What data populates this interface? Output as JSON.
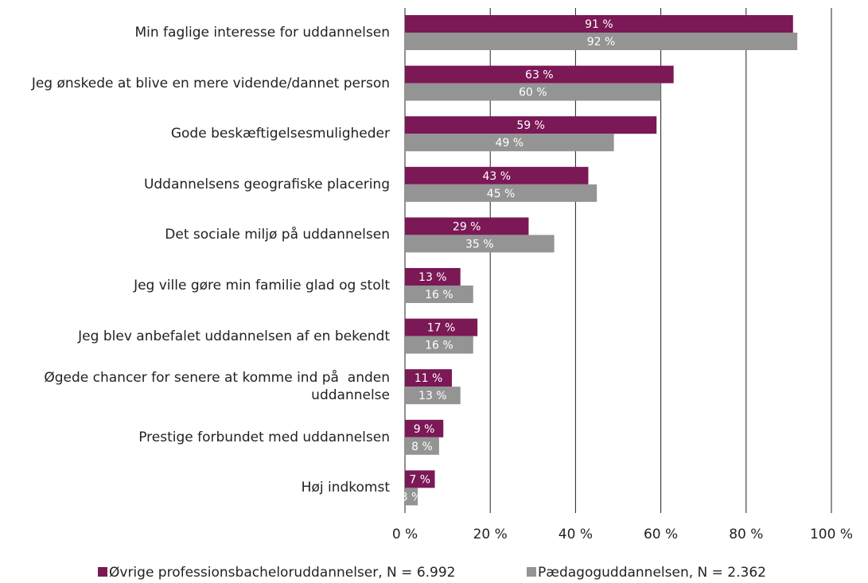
{
  "chart_data": {
    "type": "hbar",
    "categories": [
      "Min faglige interesse for uddannelsen",
      "Jeg ønskede at blive en mere vidende/dannet person",
      "Gode beskæftigelsesmuligheder",
      "Uddannelsens geografiske placering",
      "Det sociale miljø på uddannelsen",
      "Jeg ville gøre min familie glad og stolt",
      "Jeg blev anbefalet uddannelsen af en bekendt",
      "Øgede chancer for senere at komme ind på  anden uddannelse",
      "Prestige forbundet med uddannelsen",
      "Høj indkomst"
    ],
    "series": [
      {
        "name": "Øvrige professionsbacheloruddannelser, N = 6.992",
        "color": "#7b1856",
        "values": [
          91,
          63,
          59,
          43,
          29,
          13,
          17,
          11,
          9,
          7
        ],
        "value_labels": [
          "91 %",
          "63 %",
          "59 %",
          "43 %",
          "29 %",
          "13 %",
          "17 %",
          "11 %",
          "9 %",
          "7 %"
        ]
      },
      {
        "name": "Pædagoguddannelsen, N = 2.362",
        "color": "#949494",
        "values": [
          92,
          60,
          49,
          45,
          35,
          16,
          16,
          13,
          8,
          3
        ],
        "value_labels": [
          "92 %",
          "60 %",
          "49 %",
          "45 %",
          "35 %",
          "16 %",
          "16 %",
          "13 %",
          "8 %",
          "3 %"
        ]
      }
    ],
    "xlim": [
      0,
      100
    ],
    "xticks": [
      {
        "value": 0,
        "label": "0 %"
      },
      {
        "value": 20,
        "label": "20 %"
      },
      {
        "value": 40,
        "label": "40 %"
      },
      {
        "value": 60,
        "label": "60 %"
      },
      {
        "value": 80,
        "label": "80 %"
      },
      {
        "value": 100,
        "label": "100 %"
      }
    ],
    "grid": true,
    "legend": "bottom"
  }
}
